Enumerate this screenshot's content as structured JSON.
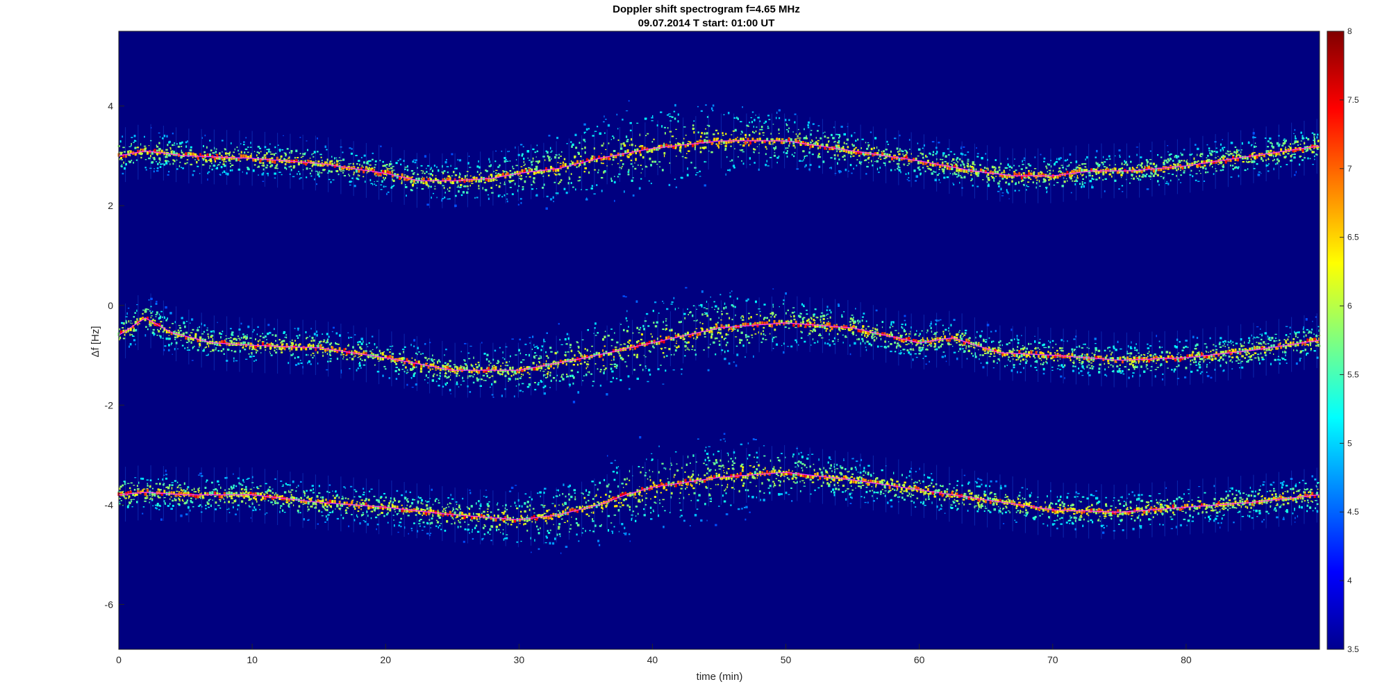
{
  "chart_data": {
    "type": "heatmap",
    "title": "Doppler shift spectrogram f=4.65 MHz",
    "subtitle": "09.07.2014   T start: 01:00 UT",
    "xlabel": "time (min)",
    "ylabel": "Δf [Hz]",
    "xlim": [
      0,
      90
    ],
    "ylim": [
      -6.9,
      5.5
    ],
    "x_ticks": [
      0,
      10,
      20,
      30,
      40,
      50,
      60,
      70,
      80
    ],
    "y_ticks": [
      4,
      2,
      0,
      -2,
      -4,
      -6
    ],
    "colorbar": {
      "colormap": "jet",
      "limits": [
        3.5,
        8
      ],
      "ticks": [
        "8",
        "7.5",
        "7",
        "6.5",
        "6",
        "5.5",
        "5",
        "4.5",
        "4",
        "3.5"
      ]
    },
    "colors": {
      "background": "#000080",
      "trace_line": "#ff33ff"
    },
    "series": [
      {
        "x": [
          0,
          2,
          5,
          10,
          15,
          20,
          22.5,
          25,
          28,
          30,
          33,
          36,
          40,
          45,
          50,
          55,
          60,
          64,
          67,
          70,
          73,
          76,
          80,
          85,
          90
        ],
        "y": [
          3.0,
          3.1,
          3.0,
          2.95,
          2.85,
          2.65,
          2.5,
          2.5,
          2.55,
          2.65,
          2.75,
          2.95,
          3.15,
          3.3,
          3.3,
          3.1,
          2.9,
          2.7,
          2.6,
          2.6,
          2.7,
          2.7,
          2.8,
          3.0,
          3.2
        ]
      },
      {
        "x": [
          0,
          2,
          4,
          7,
          10,
          15,
          20,
          25,
          30,
          35,
          40,
          45,
          50,
          55,
          60,
          62.5,
          66,
          70,
          75,
          80,
          85,
          90
        ],
        "y": [
          -0.6,
          -0.25,
          -0.55,
          -0.75,
          -0.8,
          -0.85,
          -1.05,
          -1.3,
          -1.3,
          -1.05,
          -0.75,
          -0.45,
          -0.35,
          -0.45,
          -0.75,
          -0.65,
          -0.95,
          -1.0,
          -1.1,
          -1.05,
          -0.9,
          -0.7
        ]
      },
      {
        "x": [
          0,
          2,
          5,
          10,
          15,
          20,
          25,
          30,
          33,
          36,
          38,
          40,
          45,
          50,
          55,
          60,
          65,
          70,
          75,
          80,
          85,
          90
        ],
        "y": [
          -3.8,
          -3.75,
          -3.8,
          -3.8,
          -3.95,
          -4.05,
          -4.2,
          -4.3,
          -4.2,
          -4.0,
          -3.8,
          -3.65,
          -3.45,
          -3.35,
          -3.5,
          -3.7,
          -3.9,
          -4.1,
          -4.15,
          -4.05,
          -3.95,
          -3.8
        ]
      }
    ]
  }
}
